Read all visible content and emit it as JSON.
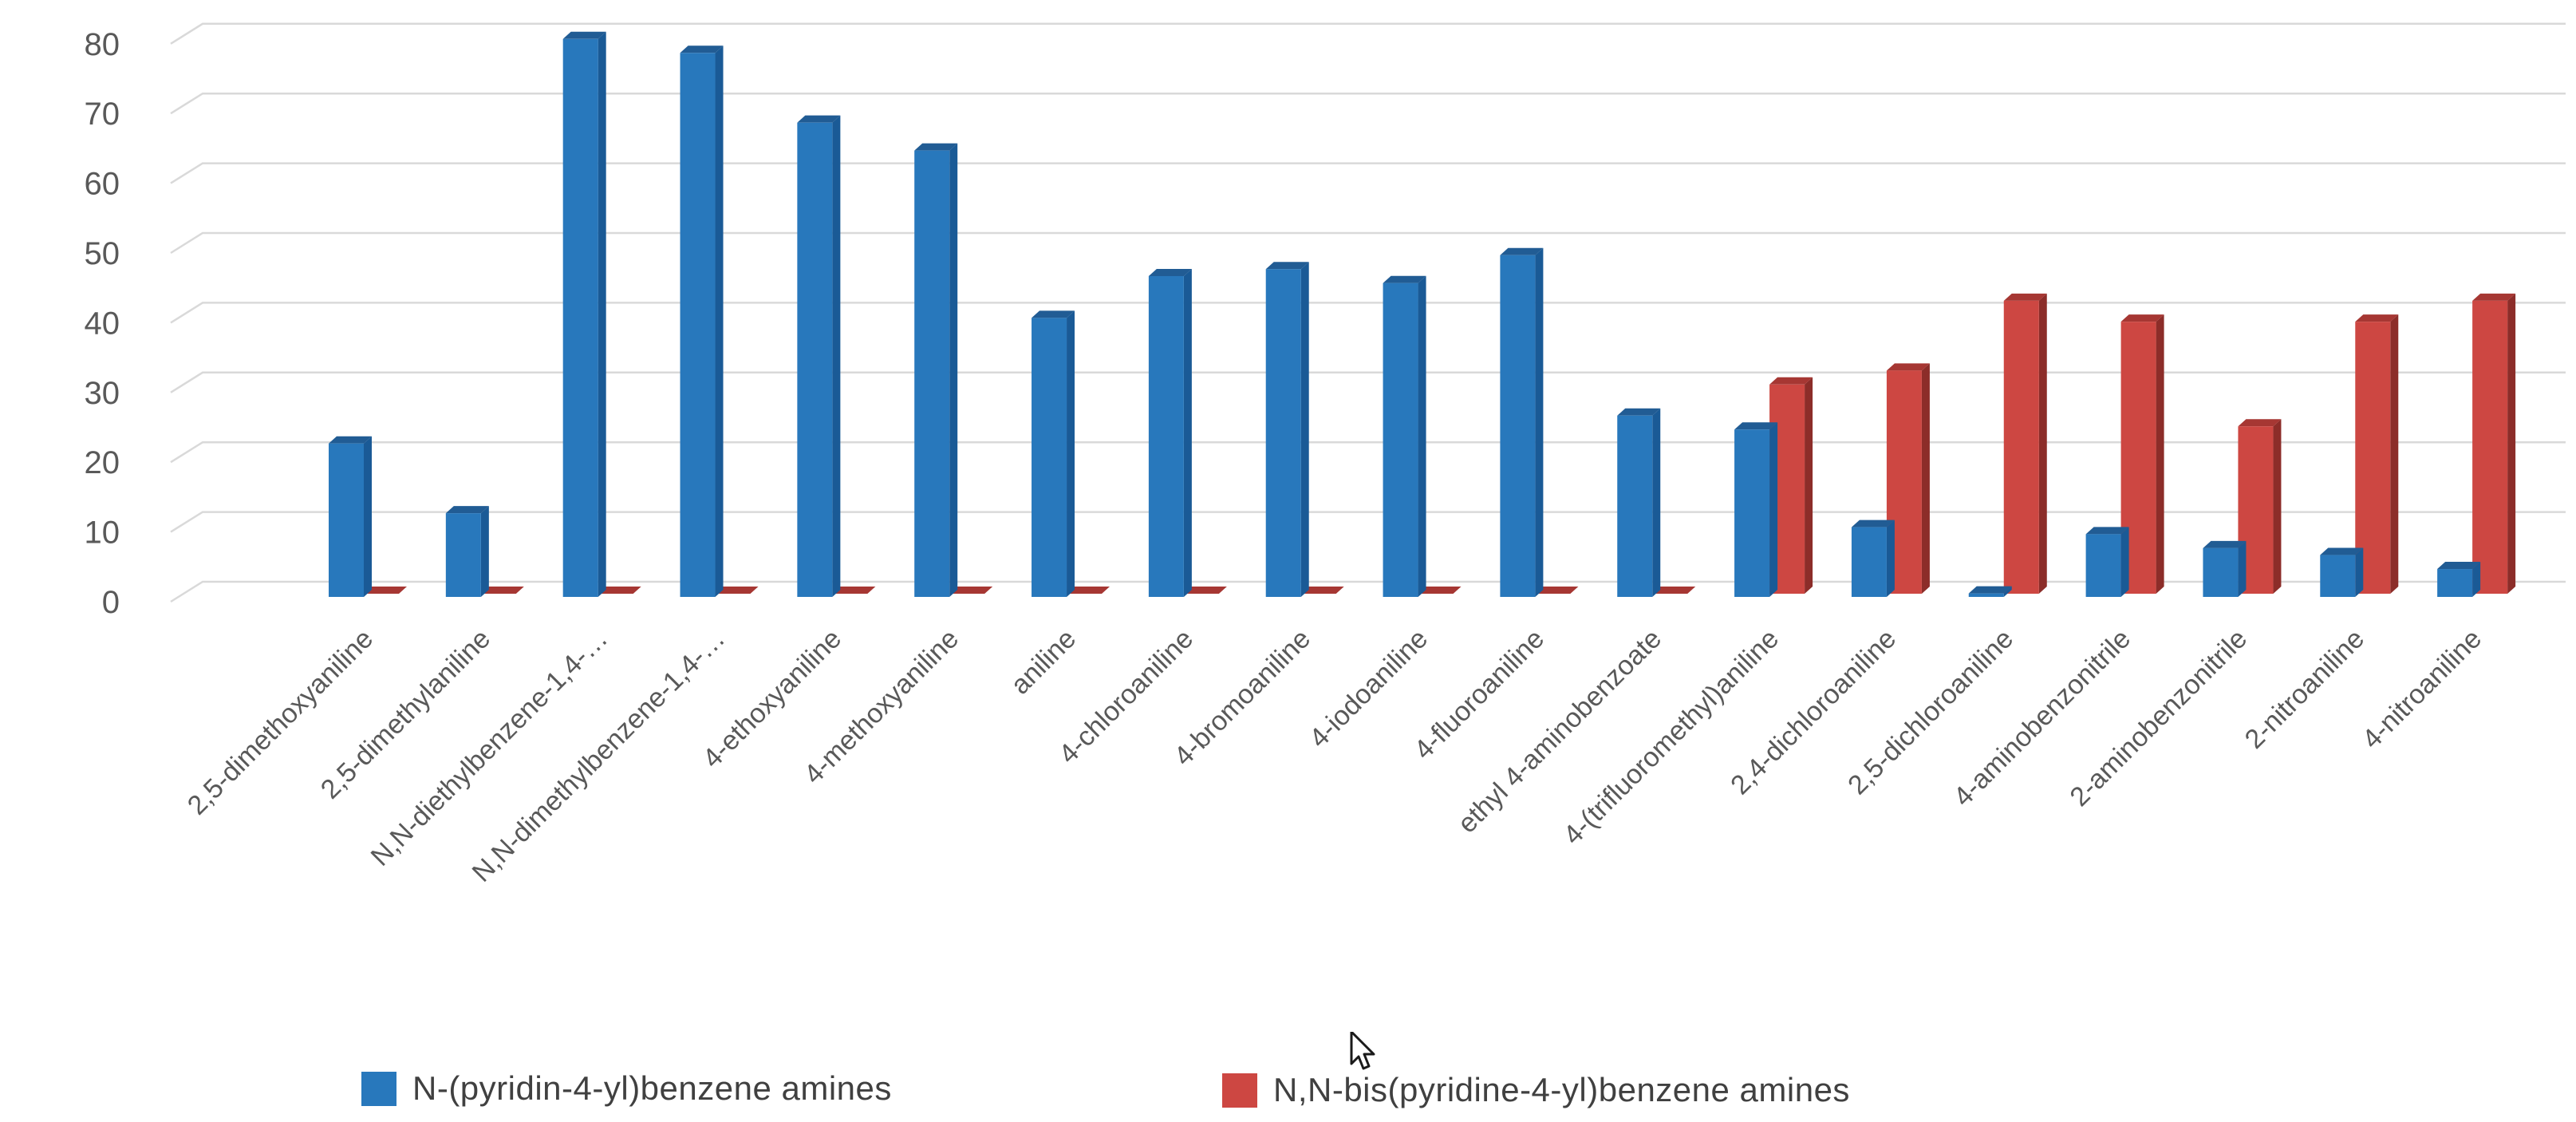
{
  "chart_data": {
    "type": "bar",
    "style": "3d-clustered",
    "title": "",
    "xlabel": "",
    "ylabel": "",
    "ylim": [
      0,
      80
    ],
    "yticks": [
      0,
      10,
      20,
      30,
      40,
      50,
      60,
      70,
      80
    ],
    "grid": true,
    "legend_position": "bottom",
    "categories": [
      "2,5-dimethoxyaniline",
      "2,5-dimethylaniline",
      "N,N-diethylbenzene-1,4-…",
      "N,N-dimethylbenzene-1,4-…",
      "4-ethoxyaniline",
      "4-methoxyaniline",
      "aniline",
      "4-chloroaniline",
      "4-bromoaniline",
      "4-iodoaniline",
      "4-fluoroaniline",
      "ethyl 4-aminobenzoate",
      "4-(trifluoromethyl)aniline",
      "2,4-dichloroaniline",
      "2,5-dichloroaniline",
      "4-aminobenzonitrile",
      "2-aminobenzonitrile",
      "2-nitroaniline",
      "4-nitroaniline"
    ],
    "series": [
      {
        "name": "N-(pyridin-4-yl)benzene amines",
        "color": "#2878BC",
        "color_side": "#1A5A96",
        "color_top": "#215C94",
        "values": [
          22,
          12,
          80,
          78,
          68,
          64,
          40,
          46,
          47,
          45,
          49,
          26,
          24,
          10,
          0.5,
          9,
          7,
          6,
          4
        ]
      },
      {
        "name": "N,N-bis(pyridine-4-yl)benzene amines",
        "color": "#CD4742",
        "color_side": "#8C2D29",
        "color_top": "#A63733",
        "values": [
          0,
          0,
          0,
          0,
          0,
          0,
          0,
          0,
          0,
          0,
          0,
          0,
          30,
          32,
          42,
          39,
          24,
          39,
          42
        ]
      }
    ]
  },
  "axis": {
    "tick_color": "#595959",
    "gridline_color": "#D9D9D9",
    "category_label_color": "#595959"
  },
  "cursor": {
    "icon": "mouse-arrow-cursor"
  }
}
